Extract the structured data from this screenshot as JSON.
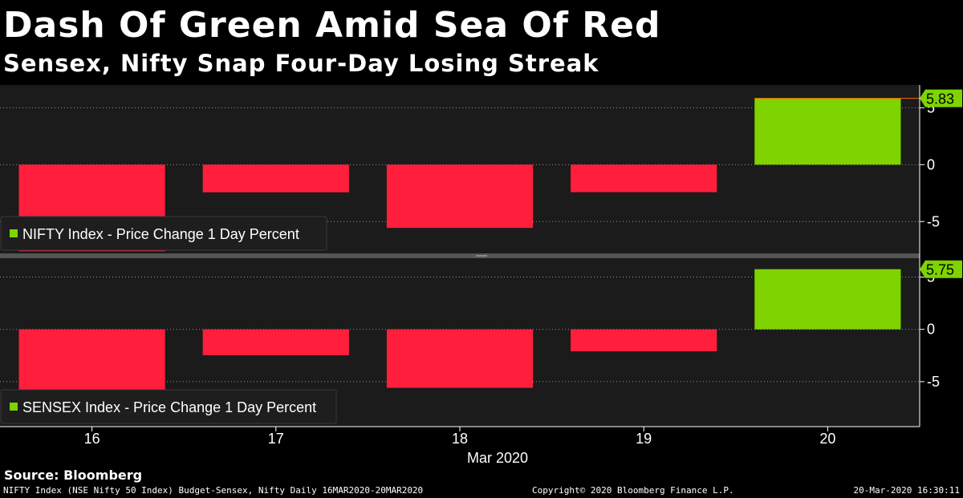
{
  "header": {
    "title": "Dash Of Green Amid Sea Of Red",
    "subtitle": "Sensex, Nifty Snap Four-Day Losing Streak"
  },
  "source": "Source: Bloomberg",
  "footer": {
    "left": "NIFTY Index (NSE Nifty 50 Index) Budget-Sensex, Nifty  Daily 16MAR2020-20MAR2020",
    "center": "Copyright© 2020 Bloomberg Finance L.P.",
    "right": "20-Mar-2020 16:30:11"
  },
  "colors": {
    "positive": "#7ED300",
    "negative": "#FF1E3C",
    "plot_bg": "#1B1B1B",
    "grid": "#9A9A9A",
    "last_value_line": "#FF6A00"
  },
  "chart_data": [
    {
      "type": "bar",
      "categories": [
        "16",
        "17",
        "18",
        "19",
        "20"
      ],
      "xlabel": "Mar 2020",
      "series": [
        {
          "name": "NIFTY Index - Price Change 1 Day Percent",
          "values": [
            -7.61,
            -2.43,
            -5.56,
            -2.42,
            5.83
          ]
        }
      ],
      "last_value_label": "5.83",
      "yticks": [
        "5",
        "0",
        "-5"
      ],
      "ylim": [
        -7.8,
        7.0
      ],
      "legend_position": "bottom-left",
      "grid": true
    },
    {
      "type": "bar",
      "categories": [
        "16",
        "17",
        "18",
        "19",
        "20"
      ],
      "xlabel": "Mar 2020",
      "series": [
        {
          "name": "SENSEX Index - Price Change 1 Day Percent",
          "values": [
            -7.96,
            -2.47,
            -5.59,
            -2.1,
            5.75
          ]
        }
      ],
      "last_value_label": "5.75",
      "yticks": [
        "5",
        "0",
        "-5"
      ],
      "ylim": [
        -9.3,
        6.8
      ],
      "legend_position": "bottom-left",
      "grid": true
    }
  ]
}
